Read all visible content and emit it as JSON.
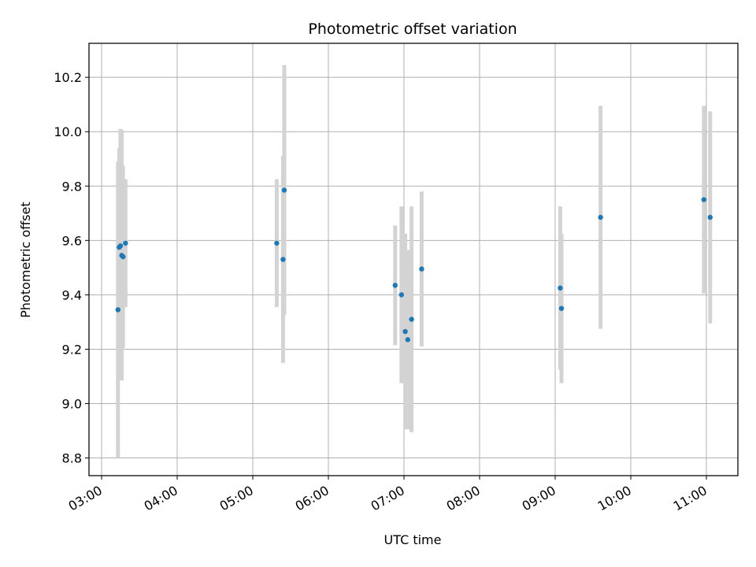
{
  "chart_data": {
    "type": "scatter",
    "title": "Photometric offset variation",
    "xlabel": "UTC time",
    "ylabel": "Photometric offset",
    "x_ticks": [
      "03:00",
      "04:00",
      "05:00",
      "06:00",
      "07:00",
      "08:00",
      "09:00",
      "10:00",
      "11:00"
    ],
    "y_ticks": [
      "8.8",
      "9.0",
      "9.2",
      "9.4",
      "9.6",
      "9.8",
      "10.0",
      "10.2"
    ],
    "xlim": [
      "02:50",
      "11:25"
    ],
    "ylim": [
      8.735,
      10.325
    ],
    "grid": true,
    "colors": {
      "point": "#1f77b4",
      "errorbar": "#d3d3d3",
      "grid": "#b0b0b0"
    },
    "points": [
      {
        "x": "03:13",
        "y": 9.345,
        "err": 0.545
      },
      {
        "x": "03:14",
        "y": 9.575,
        "err": 0.365
      },
      {
        "x": "03:15",
        "y": 9.58,
        "err": 0.43
      },
      {
        "x": "03:16",
        "y": 9.545,
        "err": 0.46
      },
      {
        "x": "03:17",
        "y": 9.54,
        "err": 0.335
      },
      {
        "x": "03:19",
        "y": 9.59,
        "err": 0.235
      },
      {
        "x": "05:19",
        "y": 9.59,
        "err": 0.235
      },
      {
        "x": "05:24",
        "y": 9.53,
        "err": 0.38
      },
      {
        "x": "05:25",
        "y": 9.785,
        "err": 0.46
      },
      {
        "x": "06:53",
        "y": 9.435,
        "err": 0.22
      },
      {
        "x": "06:58",
        "y": 9.4,
        "err": 0.325
      },
      {
        "x": "07:01",
        "y": 9.265,
        "err": 0.36
      },
      {
        "x": "07:03",
        "y": 9.235,
        "err": 0.33
      },
      {
        "x": "07:06",
        "y": 9.31,
        "err": 0.415
      },
      {
        "x": "07:14",
        "y": 9.495,
        "err": 0.285
      },
      {
        "x": "09:04",
        "y": 9.425,
        "err": 0.3
      },
      {
        "x": "09:05",
        "y": 9.35,
        "err": 0.275
      },
      {
        "x": "09:36",
        "y": 9.685,
        "err": 0.41
      },
      {
        "x": "10:58",
        "y": 9.75,
        "err": 0.345
      },
      {
        "x": "11:03",
        "y": 9.685,
        "err": 0.39
      }
    ]
  }
}
